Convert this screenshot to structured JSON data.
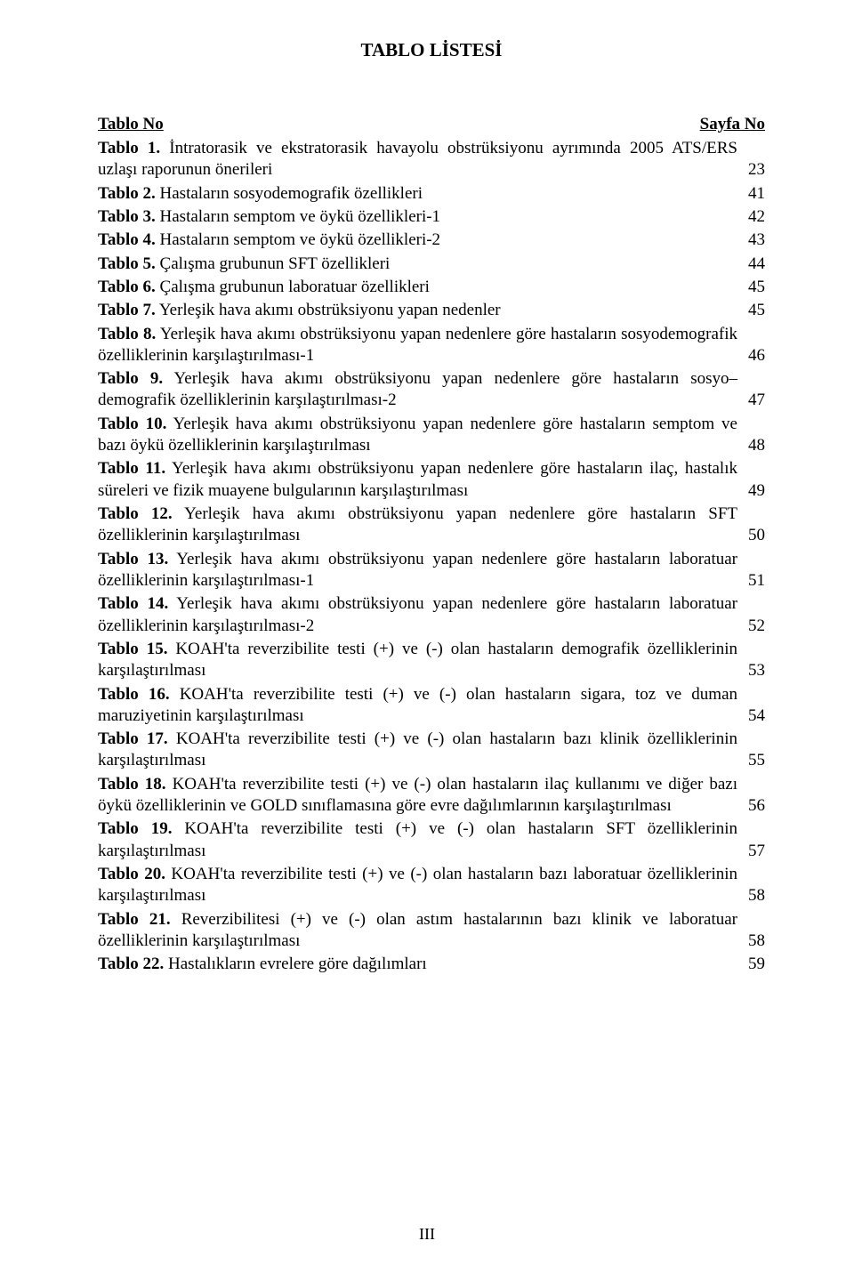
{
  "title": "TABLO LİSTESİ",
  "header": {
    "left": "Tablo No",
    "right": "Sayfa No"
  },
  "entries": [
    {
      "bold": "Tablo 1.",
      "text": " İntratorasik ve ekstratorasik havayolu obstrüksiyonu ayrımında 2005 ATS/ERS uzlaşı raporunun önerileri",
      "page": "23"
    },
    {
      "bold": "Tablo 2.",
      "text": " Hastaların sosyodemografik özellikleri",
      "page": "41"
    },
    {
      "bold": "Tablo 3.",
      "text": " Hastaların semptom ve öykü özellikleri-1",
      "page": "42"
    },
    {
      "bold": "Tablo 4.",
      "text": " Hastaların semptom ve öykü özellikleri-2",
      "page": "43"
    },
    {
      "bold": "Tablo 5.",
      "text": " Çalışma grubunun SFT özellikleri",
      "page": "44"
    },
    {
      "bold": "Tablo 6.",
      "text": " Çalışma grubunun laboratuar özellikleri",
      "page": "45"
    },
    {
      "bold": "Tablo 7.",
      "text": " Yerleşik hava akımı obstrüksiyonu yapan nedenler",
      "page": "45"
    },
    {
      "bold": "Tablo 8.",
      "text": " Yerleşik hava akımı obstrüksiyonu yapan nedenlere göre hastaların sosyodemografik özelliklerinin karşılaştırılması-1",
      "page": "46"
    },
    {
      "bold": "Tablo 9.",
      "text": " Yerleşik hava akımı obstrüksiyonu yapan nedenlere göre hastaların sosyo–demografik özelliklerinin karşılaştırılması-2",
      "page": "47"
    },
    {
      "bold": "Tablo 10.",
      "text": " Yerleşik hava akımı obstrüksiyonu yapan nedenlere göre hastaların semptom ve bazı öykü özelliklerinin karşılaştırılması",
      "page": "48"
    },
    {
      "bold": "Tablo 11.",
      "text": " Yerleşik hava akımı obstrüksiyonu yapan nedenlere göre hastaların ilaç, hastalık süreleri ve fizik muayene bulgularının karşılaştırılması",
      "page": "49"
    },
    {
      "bold": "Tablo 12.",
      "text": " Yerleşik hava akımı obstrüksiyonu yapan nedenlere göre hastaların SFT özelliklerinin karşılaştırılması",
      "page": "50"
    },
    {
      "bold": "Tablo 13.",
      "text": " Yerleşik hava akımı obstrüksiyonu yapan nedenlere göre hastaların laboratuar özelliklerinin karşılaştırılması-1",
      "page": "51"
    },
    {
      "bold": "Tablo 14.",
      "text": " Yerleşik hava akımı obstrüksiyonu yapan nedenlere göre hastaların laboratuar özelliklerinin karşılaştırılması-2",
      "page": "52"
    },
    {
      "bold": "Tablo 15.",
      "text": " KOAH'ta reverzibilite testi (+) ve (-) olan hastaların demografik özelliklerinin karşılaştırılması",
      "page": "53"
    },
    {
      "bold": "Tablo 16.",
      "text": " KOAH'ta reverzibilite testi (+) ve (-) olan hastaların sigara, toz ve duman maruziyetinin karşılaştırılması",
      "page": "54"
    },
    {
      "bold": "Tablo 17.",
      "text": " KOAH'ta reverzibilite testi (+) ve (-) olan hastaların bazı klinik özelliklerinin karşılaştırılması",
      "page": "55"
    },
    {
      "bold": "Tablo 18.",
      "text": " KOAH'ta reverzibilite testi (+) ve (-) olan hastaların ilaç kullanımı ve diğer bazı öykü özelliklerinin ve GOLD sınıflamasına göre evre dağılımlarının karşılaştırılması",
      "page": "56"
    },
    {
      "bold": "Tablo 19.",
      "text": " KOAH'ta reverzibilite testi (+) ve (-) olan hastaların SFT özelliklerinin karşılaştırılması",
      "page": "57"
    },
    {
      "bold": "Tablo 20.",
      "text": " KOAH'ta reverzibilite testi (+) ve (-) olan hastaların bazı laboratuar özelliklerinin karşılaştırılması",
      "page": "58"
    },
    {
      "bold": "Tablo 21.",
      "text": " Reverzibilitesi (+)  ve (-) olan astım hastalarının bazı klinik ve laboratuar özelliklerinin karşılaştırılması",
      "page": "58"
    },
    {
      "bold": " Tablo 22.",
      "text": " Hastalıkların evrelere göre dağılımları",
      "page": "59"
    }
  ],
  "footer": "III"
}
